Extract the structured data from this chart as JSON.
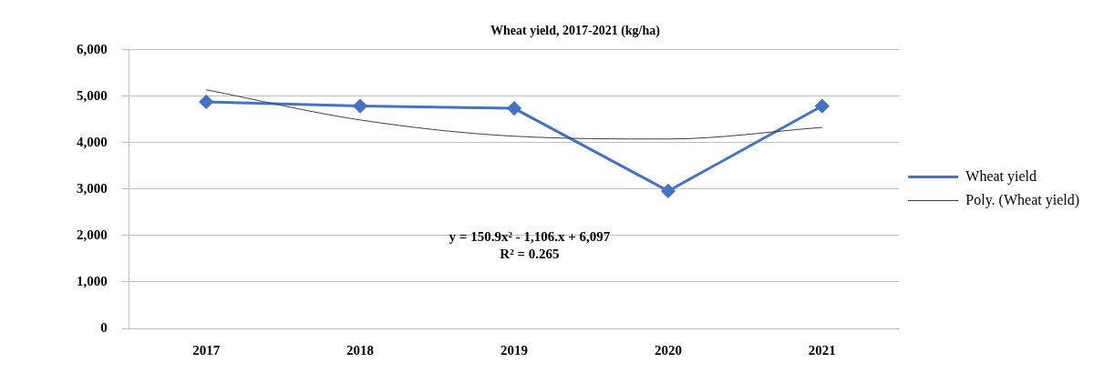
{
  "chart_data": {
    "type": "line",
    "title": "Wheat yield, 2017-2021 (kg/ha)",
    "categories": [
      "2017",
      "2018",
      "2019",
      "2020",
      "2021"
    ],
    "series": [
      {
        "name": "Wheat yield",
        "color": "#4472c4",
        "values": [
          4880,
          4790,
          4740,
          2960,
          4790
        ],
        "marker": "diamond"
      },
      {
        "name": "Poly. (Wheat yield)",
        "color": "#404040",
        "type": "line",
        "values": [
          5140,
          4490,
          4140,
          4080,
          4330
        ],
        "marker": "none"
      }
    ],
    "ylim": [
      0,
      6000
    ],
    "yticks": [
      {
        "value": 0,
        "label": "0"
      },
      {
        "value": 1000,
        "label": "1,000"
      },
      {
        "value": 2000,
        "label": "2,000"
      },
      {
        "value": 3000,
        "label": "3,000"
      },
      {
        "value": 4000,
        "label": "4,000"
      },
      {
        "value": 5000,
        "label": "5,000"
      },
      {
        "value": 6000,
        "label": "6,000"
      }
    ],
    "grid": "y",
    "legend": "right",
    "annotations": [
      "y = 150.9x² - 1,106.x + 6,097",
      "R² = 0.265"
    ]
  }
}
